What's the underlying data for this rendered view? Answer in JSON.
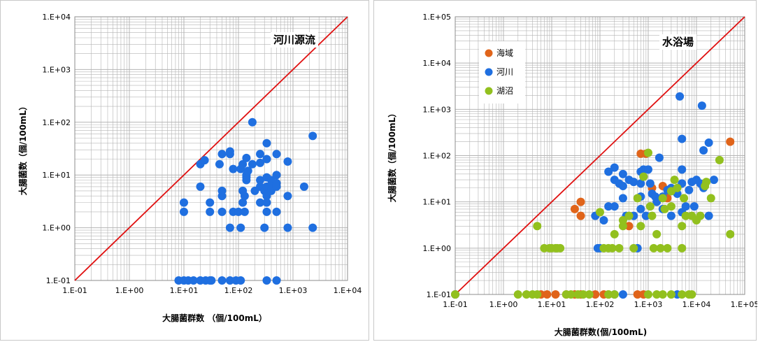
{
  "colors": {
    "blue": "#1f6fe0",
    "orange": "#e0641a",
    "green": "#92c01e",
    "diagonal": "#e01010",
    "grid": "#b4b4b4"
  },
  "chart_data": [
    {
      "type": "scatter",
      "title": "河川源流",
      "xlabel": "大腸菌群数 （個/100mL）",
      "ylabel": "大腸菌数（個/100mL）",
      "xscale": "log",
      "yscale": "log",
      "xlim": [
        0.1,
        10000
      ],
      "ylim": [
        0.1,
        10000
      ],
      "xticks": [
        "1.E-01",
        "1.E+00",
        "1.E+01",
        "1.E+02",
        "1.E+03",
        "1.E+04"
      ],
      "yticks": [
        "1.E-01",
        "1.E+00",
        "1.E+01",
        "1.E+02",
        "1.E+03",
        "1.E+04"
      ],
      "reference_line": "y = x",
      "series": [
        {
          "color": "#1f6fe0",
          "points": [
            [
              8,
              0.1
            ],
            [
              10,
              0.1
            ],
            [
              12,
              0.1
            ],
            [
              15,
              0.1
            ],
            [
              20,
              0.1
            ],
            [
              25,
              0.1
            ],
            [
              30,
              0.1
            ],
            [
              32,
              0.1
            ],
            [
              50,
              0.1
            ],
            [
              70,
              0.1
            ],
            [
              90,
              0.1
            ],
            [
              110,
              0.1
            ],
            [
              330,
              0.1
            ],
            [
              500,
              0.1
            ],
            [
              10,
              3
            ],
            [
              10,
              2
            ],
            [
              20,
              16
            ],
            [
              24,
              19
            ],
            [
              20,
              6
            ],
            [
              30,
              3
            ],
            [
              30,
              2
            ],
            [
              45,
              16
            ],
            [
              50,
              2
            ],
            [
              50,
              25
            ],
            [
              50,
              5
            ],
            [
              50,
              4
            ],
            [
              70,
              25
            ],
            [
              80,
              13
            ],
            [
              70,
              28
            ],
            [
              70,
              1
            ],
            [
              80,
              2
            ],
            [
              110,
              13
            ],
            [
              100,
              2
            ],
            [
              110,
              1
            ],
            [
              120,
              16
            ],
            [
              120,
              5
            ],
            [
              120,
              3
            ],
            [
              130,
              4
            ],
            [
              130,
              2
            ],
            [
              140,
              21
            ],
            [
              140,
              10
            ],
            [
              140,
              9
            ],
            [
              140,
              8
            ],
            [
              150,
              12
            ],
            [
              180,
              100
            ],
            [
              180,
              16
            ],
            [
              200,
              5
            ],
            [
              250,
              25
            ],
            [
              250,
              17
            ],
            [
              250,
              8
            ],
            [
              250,
              6
            ],
            [
              250,
              3
            ],
            [
              300,
              5
            ],
            [
              300,
              1
            ],
            [
              330,
              40
            ],
            [
              330,
              20
            ],
            [
              330,
              9
            ],
            [
              330,
              6
            ],
            [
              330,
              4
            ],
            [
              330,
              3
            ],
            [
              330,
              2
            ],
            [
              400,
              8
            ],
            [
              400,
              6
            ],
            [
              400,
              5
            ],
            [
              500,
              25
            ],
            [
              500,
              10
            ],
            [
              500,
              7
            ],
            [
              500,
              2
            ],
            [
              500,
              6
            ],
            [
              800,
              18
            ],
            [
              800,
              4
            ],
            [
              800,
              1
            ],
            [
              1600,
              6
            ],
            [
              2300,
              55
            ],
            [
              2300,
              1
            ]
          ]
        }
      ]
    },
    {
      "type": "scatter",
      "title": "水浴場",
      "xlabel": "大腸菌群数(個/100mL)",
      "ylabel": "大腸菌数（個/100mL）",
      "xscale": "log",
      "yscale": "log",
      "xlim": [
        0.1,
        100000
      ],
      "ylim": [
        0.1,
        100000
      ],
      "xticks": [
        "1.E-01",
        "1.E+00",
        "1.E+01",
        "1.E+02",
        "1.E+03",
        "1.E+04",
        "1.E+05"
      ],
      "yticks": [
        "1.E-01",
        "1.E+00",
        "1.E+01",
        "1.E+02",
        "1.E+03",
        "1.E+04",
        "1.E+05"
      ],
      "reference_line": "y = x",
      "legend_position": "top-left",
      "series": [
        {
          "name": "海域",
          "color": "#e0641a",
          "points": [
            [
              0.1,
              0.1
            ],
            [
              6,
              0.1
            ],
            [
              8,
              0.1
            ],
            [
              12,
              0.1
            ],
            [
              20,
              0.1
            ],
            [
              30,
              0.1
            ],
            [
              40,
              0.1
            ],
            [
              80,
              0.1
            ],
            [
              120,
              0.1
            ],
            [
              150,
              0.1
            ],
            [
              600,
              0.1
            ],
            [
              800,
              0.1
            ],
            [
              30,
              7
            ],
            [
              40,
              10
            ],
            [
              40,
              5
            ],
            [
              400,
              3
            ],
            [
              700,
              110
            ],
            [
              900,
              110
            ],
            [
              1200,
              20
            ],
            [
              2000,
              22
            ],
            [
              2500,
              12
            ],
            [
              50000,
              200
            ]
          ]
        },
        {
          "name": "河川",
          "color": "#1f6fe0",
          "points": [
            [
              0.1,
              0.1
            ],
            [
              200,
              0.1
            ],
            [
              300,
              0.1
            ],
            [
              4000,
              0.1
            ],
            [
              4500,
              1900
            ],
            [
              13000,
              1200
            ],
            [
              5000,
              230
            ],
            [
              18000,
              190
            ],
            [
              14000,
              130
            ],
            [
              80,
              5
            ],
            [
              90,
              1
            ],
            [
              100,
              1
            ],
            [
              120,
              4
            ],
            [
              150,
              8
            ],
            [
              150,
              45
            ],
            [
              200,
              55
            ],
            [
              200,
              8
            ],
            [
              200,
              30
            ],
            [
              250,
              25
            ],
            [
              300,
              40
            ],
            [
              300,
              22
            ],
            [
              300,
              12
            ],
            [
              350,
              5
            ],
            [
              400,
              30
            ],
            [
              500,
              27
            ],
            [
              500,
              5
            ],
            [
              600,
              1
            ],
            [
              700,
              45
            ],
            [
              700,
              25
            ],
            [
              700,
              13
            ],
            [
              700,
              7
            ],
            [
              800,
              50
            ],
            [
              800,
              35
            ],
            [
              900,
              5
            ],
            [
              1000,
              50
            ],
            [
              1100,
              25
            ],
            [
              1200,
              15
            ],
            [
              1400,
              13
            ],
            [
              1500,
              10
            ],
            [
              1700,
              90
            ],
            [
              2000,
              13
            ],
            [
              2000,
              7
            ],
            [
              2500,
              18
            ],
            [
              3000,
              20
            ],
            [
              3000,
              5
            ],
            [
              4000,
              15
            ],
            [
              5000,
              50
            ],
            [
              5000,
              25
            ],
            [
              5000,
              6
            ],
            [
              6000,
              8
            ],
            [
              7000,
              18
            ],
            [
              8000,
              27
            ],
            [
              9000,
              8
            ],
            [
              10000,
              30
            ],
            [
              12000,
              25
            ],
            [
              14000,
              20
            ],
            [
              18000,
              5
            ],
            [
              23000,
              30
            ]
          ]
        },
        {
          "name": "湖沼",
          "color": "#92c01e",
          "points": [
            [
              0.1,
              0.1
            ],
            [
              2,
              0.1
            ],
            [
              3,
              0.1
            ],
            [
              4,
              0.1
            ],
            [
              5,
              0.1
            ],
            [
              20,
              0.1
            ],
            [
              25,
              0.1
            ],
            [
              35,
              0.1
            ],
            [
              45,
              0.1
            ],
            [
              60,
              0.1
            ],
            [
              150,
              0.1
            ],
            [
              200,
              0.1
            ],
            [
              1000,
              0.1
            ],
            [
              1500,
              0.1
            ],
            [
              2000,
              0.1
            ],
            [
              3000,
              0.1
            ],
            [
              5000,
              0.1
            ],
            [
              7000,
              0.1
            ],
            [
              8000,
              0.1
            ],
            [
              5,
              3
            ],
            [
              7,
              1
            ],
            [
              9,
              1
            ],
            [
              10,
              1
            ],
            [
              12,
              1
            ],
            [
              13,
              1
            ],
            [
              15,
              1
            ],
            [
              100,
              6
            ],
            [
              120,
              1
            ],
            [
              150,
              1
            ],
            [
              180,
              1
            ],
            [
              200,
              2
            ],
            [
              250,
              1
            ],
            [
              300,
              4
            ],
            [
              300,
              3
            ],
            [
              400,
              5
            ],
            [
              500,
              1
            ],
            [
              600,
              12
            ],
            [
              700,
              3
            ],
            [
              800,
              35
            ],
            [
              1000,
              115
            ],
            [
              1100,
              8
            ],
            [
              1200,
              5
            ],
            [
              1300,
              1
            ],
            [
              1500,
              2
            ],
            [
              1800,
              1
            ],
            [
              2000,
              12
            ],
            [
              2200,
              7
            ],
            [
              2500,
              1
            ],
            [
              3000,
              8
            ],
            [
              3000,
              17
            ],
            [
              3500,
              30
            ],
            [
              4000,
              20
            ],
            [
              5000,
              1
            ],
            [
              5000,
              3
            ],
            [
              5500,
              12
            ],
            [
              6000,
              5
            ],
            [
              8000,
              5
            ],
            [
              10000,
              4
            ],
            [
              12000,
              5
            ],
            [
              15000,
              22
            ],
            [
              16000,
              27
            ],
            [
              20000,
              12
            ],
            [
              30000,
              80
            ],
            [
              50000,
              2
            ]
          ]
        }
      ]
    }
  ]
}
